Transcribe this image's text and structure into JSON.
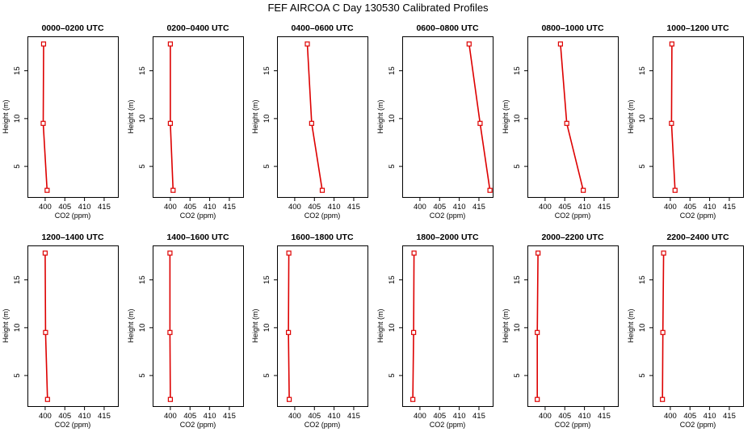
{
  "chart_data": {
    "type": "line",
    "title": "FEF AIRCOA C  Day 130530  Calibrated Profiles",
    "xlabel": "CO2 (ppm)",
    "ylabel": "Height (m)",
    "xlim": [
      395.5,
      418.5
    ],
    "ylim": [
      1.8,
      18.6
    ],
    "xticks": [
      400,
      405,
      410,
      415
    ],
    "yticks": [
      5,
      10,
      15
    ],
    "line_color": "#dd0000",
    "marker_color": "#dd0000",
    "panels": [
      {
        "title": "0000–0200 UTC",
        "points": [
          {
            "co2": 400.5,
            "height": 2.5
          },
          {
            "co2": 399.5,
            "height": 9.5
          },
          {
            "co2": 399.6,
            "height": 17.8
          }
        ]
      },
      {
        "title": "0200–0400 UTC",
        "points": [
          {
            "co2": 400.7,
            "height": 2.5
          },
          {
            "co2": 400.0,
            "height": 9.5
          },
          {
            "co2": 400.0,
            "height": 17.8
          }
        ]
      },
      {
        "title": "0400–0600 UTC",
        "points": [
          {
            "co2": 407.0,
            "height": 2.5
          },
          {
            "co2": 404.3,
            "height": 9.5
          },
          {
            "co2": 403.2,
            "height": 17.8
          }
        ]
      },
      {
        "title": "0600–0800 UTC",
        "points": [
          {
            "co2": 417.8,
            "height": 2.5
          },
          {
            "co2": 415.3,
            "height": 9.5
          },
          {
            "co2": 412.5,
            "height": 17.8
          }
        ]
      },
      {
        "title": "0800–1000 UTC",
        "points": [
          {
            "co2": 409.7,
            "height": 2.5
          },
          {
            "co2": 405.5,
            "height": 9.5
          },
          {
            "co2": 403.9,
            "height": 17.8
          }
        ]
      },
      {
        "title": "1000–1200 UTC",
        "points": [
          {
            "co2": 401.2,
            "height": 2.5
          },
          {
            "co2": 400.3,
            "height": 9.5
          },
          {
            "co2": 400.4,
            "height": 17.8
          }
        ]
      },
      {
        "title": "1200–1400 UTC",
        "points": [
          {
            "co2": 400.6,
            "height": 2.5
          },
          {
            "co2": 400.1,
            "height": 9.5
          },
          {
            "co2": 400.0,
            "height": 17.8
          }
        ]
      },
      {
        "title": "1400–1600 UTC",
        "points": [
          {
            "co2": 400.0,
            "height": 2.5
          },
          {
            "co2": 399.9,
            "height": 9.5
          },
          {
            "co2": 399.9,
            "height": 17.8
          }
        ]
      },
      {
        "title": "1600–1800 UTC",
        "points": [
          {
            "co2": 398.6,
            "height": 2.5
          },
          {
            "co2": 398.4,
            "height": 9.5
          },
          {
            "co2": 398.5,
            "height": 17.8
          }
        ]
      },
      {
        "title": "1800–2000 UTC",
        "points": [
          {
            "co2": 398.2,
            "height": 2.5
          },
          {
            "co2": 398.4,
            "height": 9.5
          },
          {
            "co2": 398.5,
            "height": 17.8
          }
        ]
      },
      {
        "title": "2000–2200 UTC",
        "points": [
          {
            "co2": 398.0,
            "height": 2.5
          },
          {
            "co2": 398.0,
            "height": 9.5
          },
          {
            "co2": 398.2,
            "height": 17.8
          }
        ]
      },
      {
        "title": "2200–2400 UTC",
        "points": [
          {
            "co2": 398.0,
            "height": 2.5
          },
          {
            "co2": 398.1,
            "height": 9.5
          },
          {
            "co2": 398.3,
            "height": 17.8
          }
        ]
      }
    ]
  }
}
